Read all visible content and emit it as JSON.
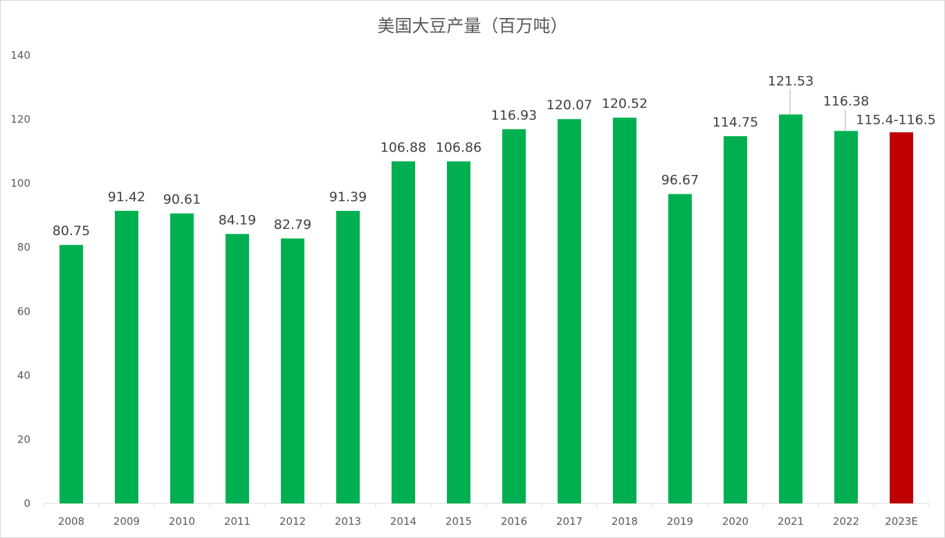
{
  "chart_data": {
    "type": "bar",
    "title": "美国大豆产量（百万吨）",
    "xlabel": "",
    "ylabel": "",
    "categories": [
      "2008",
      "2009",
      "2010",
      "2011",
      "2012",
      "2013",
      "2014",
      "2015",
      "2016",
      "2017",
      "2018",
      "2019",
      "2020",
      "2021",
      "2022",
      "2023E"
    ],
    "values": [
      80.75,
      91.42,
      90.61,
      84.19,
      82.79,
      91.39,
      106.88,
      106.86,
      116.93,
      120.07,
      120.52,
      96.67,
      114.75,
      121.53,
      116.38,
      115.95
    ],
    "data_labels": [
      "80.75",
      "91.42",
      "90.61",
      "84.19",
      "82.79",
      "91.39",
      "106.88",
      "106.86",
      "116.93",
      "120.07",
      "120.52",
      "96.67",
      "114.75",
      "121.53",
      "116.38",
      "115.4-116.5"
    ],
    "bar_colors": [
      "#00b050",
      "#00b050",
      "#00b050",
      "#00b050",
      "#00b050",
      "#00b050",
      "#00b050",
      "#00b050",
      "#00b050",
      "#00b050",
      "#00b050",
      "#00b050",
      "#00b050",
      "#00b050",
      "#00b050",
      "#c00000"
    ],
    "ylim": [
      0,
      140
    ],
    "yticks": [
      "0",
      "20",
      "40",
      "60",
      "80",
      "100",
      "120",
      "140"
    ],
    "grid": false,
    "legend": "none"
  }
}
